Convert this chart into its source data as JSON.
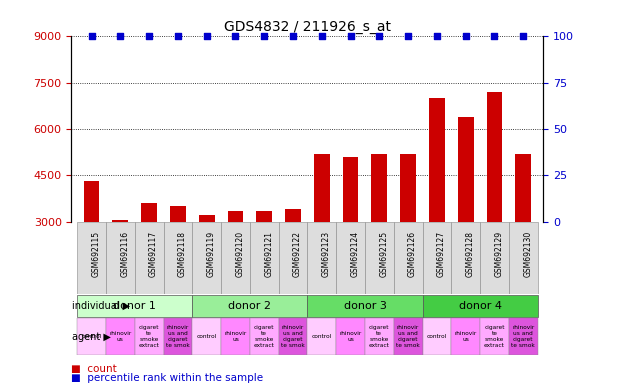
{
  "title": "GDS4832 / 211926_s_at",
  "samples": [
    "GSM692115",
    "GSM692116",
    "GSM692117",
    "GSM692118",
    "GSM692119",
    "GSM692120",
    "GSM692121",
    "GSM692122",
    "GSM692123",
    "GSM692124",
    "GSM692125",
    "GSM692126",
    "GSM692127",
    "GSM692128",
    "GSM692129",
    "GSM692130"
  ],
  "counts": [
    4300,
    3050,
    3600,
    3500,
    3200,
    3350,
    3350,
    3400,
    5200,
    5100,
    5200,
    5200,
    7000,
    6400,
    7200,
    5200
  ],
  "percentile": [
    100,
    100,
    100,
    100,
    100,
    100,
    100,
    100,
    100,
    100,
    100,
    100,
    100,
    100,
    100,
    100
  ],
  "bar_color": "#cc0000",
  "dot_color": "#0000cc",
  "ylim_left": [
    3000,
    9000
  ],
  "ylim_right": [
    0,
    100
  ],
  "yticks_left": [
    3000,
    4500,
    6000,
    7500,
    9000
  ],
  "yticks_right": [
    0,
    25,
    50,
    75,
    100
  ],
  "donors": [
    {
      "label": "donor 1",
      "start": 0,
      "end": 4,
      "color": "#ccffcc"
    },
    {
      "label": "donor 2",
      "start": 4,
      "end": 8,
      "color": "#99ee99"
    },
    {
      "label": "donor 3",
      "start": 8,
      "end": 12,
      "color": "#66dd66"
    },
    {
      "label": "donor 4",
      "start": 12,
      "end": 16,
      "color": "#44cc44"
    }
  ],
  "agent_pattern": [
    0,
    1,
    2,
    3,
    0,
    1,
    2,
    3,
    0,
    1,
    2,
    3,
    0,
    1,
    2,
    3
  ],
  "agent_colors": [
    "#ffccff",
    "#ff88ff",
    "#ffaaff",
    "#dd55dd"
  ],
  "agent_labels": [
    "control",
    "rhinovir\nus",
    "cigaret\nte\nsmoke\nextract",
    "rhinovir\nus and\ncigaret\nte smok"
  ],
  "legend_count_color": "#cc0000",
  "legend_dot_color": "#0000cc",
  "bg_color": "#ffffff",
  "xticklabel_bg": "#dddddd",
  "tick_color_left": "#cc0000",
  "tick_color_right": "#0000cc"
}
